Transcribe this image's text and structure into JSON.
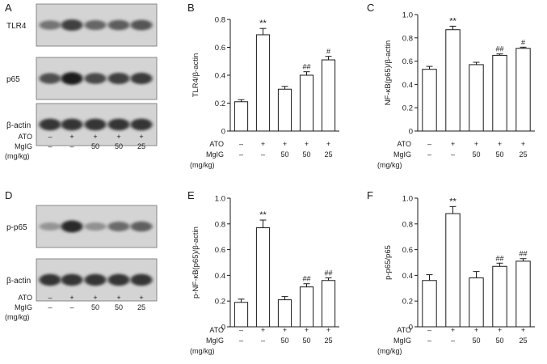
{
  "panel_letters": [
    "A",
    "B",
    "C",
    "D",
    "E",
    "F"
  ],
  "conditions": {
    "ato_label": "ATO",
    "mglg_label": "MgIG",
    "unit_label": "(mg/kg)",
    "ato": [
      "–",
      "+",
      "+",
      "+",
      "+"
    ],
    "mglg": [
      "–",
      "–",
      "50",
      "50",
      "25"
    ]
  },
  "blots": [
    {
      "panel": "A",
      "bands": [
        {
          "label": "TLR4",
          "intensity": [
            0.55,
            0.8,
            0.62,
            0.66,
            0.7
          ]
        },
        {
          "label": "p65",
          "intensity": [
            0.72,
            0.95,
            0.75,
            0.8,
            0.82
          ]
        },
        {
          "label": "β-actin",
          "intensity": [
            0.85,
            0.85,
            0.85,
            0.85,
            0.85
          ]
        }
      ]
    },
    {
      "panel": "D",
      "bands": [
        {
          "label": "p-p65",
          "intensity": [
            0.4,
            0.9,
            0.42,
            0.6,
            0.65
          ]
        },
        {
          "label": "β-actin",
          "intensity": [
            0.85,
            0.85,
            0.85,
            0.85,
            0.85
          ]
        }
      ]
    }
  ],
  "chart_data": [
    {
      "panel": "B",
      "type": "bar",
      "ylabel": "TLR4/β-actin",
      "ylim": [
        0,
        0.8
      ],
      "yticks": [
        "0",
        "0.2",
        "0.4",
        "0.6",
        "0.8"
      ],
      "values": [
        0.21,
        0.69,
        0.3,
        0.4,
        0.51
      ],
      "errors": [
        0.015,
        0.045,
        0.02,
        0.025,
        0.025
      ],
      "annotations": [
        "",
        "**",
        "",
        "##",
        "#"
      ]
    },
    {
      "panel": "C",
      "type": "bar",
      "ylabel": "NF-κB(p65)/β-actin",
      "ylim": [
        0,
        1.0
      ],
      "yticks": [
        "0",
        "0.2",
        "0.4",
        "0.6",
        "0.8",
        "1.0"
      ],
      "values": [
        0.53,
        0.87,
        0.57,
        0.65,
        0.71
      ],
      "errors": [
        0.025,
        0.03,
        0.02,
        0.012,
        0.01
      ],
      "annotations": [
        "",
        "**",
        "",
        "##",
        "#"
      ]
    },
    {
      "panel": "E",
      "type": "bar",
      "ylabel": "p-NF-κB(p65)/β-actin",
      "ylim": [
        0,
        1.0
      ],
      "yticks": [
        "0",
        "0.2",
        "0.4",
        "0.6",
        "0.8",
        "1.0"
      ],
      "values": [
        0.19,
        0.77,
        0.21,
        0.31,
        0.36
      ],
      "errors": [
        0.025,
        0.06,
        0.025,
        0.025,
        0.02
      ],
      "annotations": [
        "",
        "**",
        "",
        "##",
        "##"
      ]
    },
    {
      "panel": "F",
      "type": "bar",
      "ylabel": "p-p65/p65",
      "ylim": [
        0,
        1.0
      ],
      "yticks": [
        "0",
        "0.2",
        "0.4",
        "0.6",
        "0.8",
        "1.0"
      ],
      "values": [
        0.36,
        0.88,
        0.38,
        0.47,
        0.51
      ],
      "errors": [
        0.045,
        0.055,
        0.05,
        0.025,
        0.02
      ],
      "annotations": [
        "",
        "**",
        "",
        "##",
        "##"
      ]
    }
  ]
}
